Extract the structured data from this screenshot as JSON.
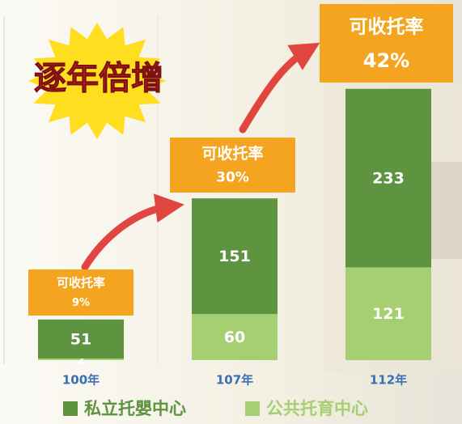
{
  "chart_data": {
    "type": "stacked-bar",
    "title": "逐年倍增",
    "categories": [
      "100年",
      "107年",
      "112年"
    ],
    "series": [
      {
        "name": "私立托嬰中心",
        "color": "#5e9440",
        "values": [
          51,
          151,
          233
        ]
      },
      {
        "name": "公共托育中心",
        "color": "#a6cf72",
        "values": [
          2,
          60,
          121
        ]
      }
    ],
    "coverage": {
      "label": "可收托率",
      "values": [
        9,
        30,
        42
      ],
      "value_labels": [
        "9%",
        "30%",
        "42%"
      ],
      "color": "#f5a41f"
    }
  }
}
